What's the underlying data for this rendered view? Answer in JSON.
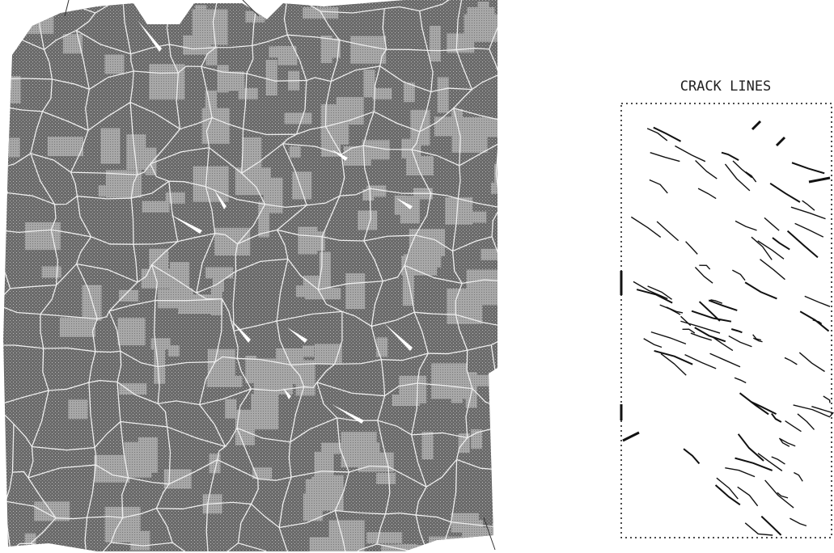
{
  "figure": {
    "right_panel": {
      "title": "CRACK LINES"
    }
  }
}
